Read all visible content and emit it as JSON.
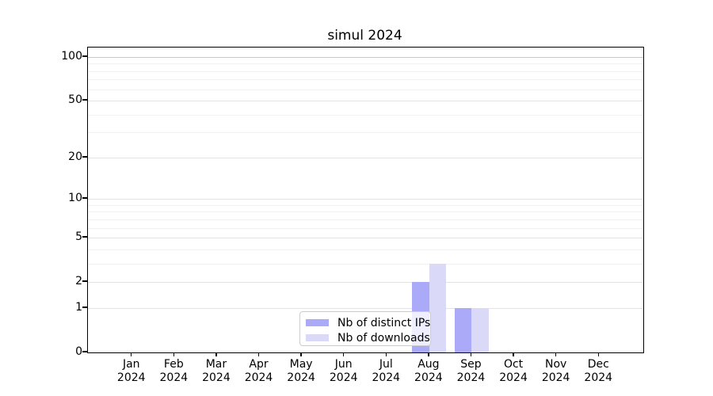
{
  "chart_data": {
    "type": "bar",
    "title": "simul 2024",
    "categories": [
      {
        "month": "Jan",
        "year": "2024"
      },
      {
        "month": "Feb",
        "year": "2024"
      },
      {
        "month": "Mar",
        "year": "2024"
      },
      {
        "month": "Apr",
        "year": "2024"
      },
      {
        "month": "May",
        "year": "2024"
      },
      {
        "month": "Jun",
        "year": "2024"
      },
      {
        "month": "Jul",
        "year": "2024"
      },
      {
        "month": "Aug",
        "year": "2024"
      },
      {
        "month": "Sep",
        "year": "2024"
      },
      {
        "month": "Oct",
        "year": "2024"
      },
      {
        "month": "Nov",
        "year": "2024"
      },
      {
        "month": "Dec",
        "year": "2024"
      }
    ],
    "series": [
      {
        "name": "Nb of distinct IPs",
        "color": "#aaaaf8",
        "values": [
          0,
          0,
          0,
          0,
          0,
          0,
          0,
          2,
          1,
          0,
          0,
          0
        ]
      },
      {
        "name": "Nb of downloads",
        "color": "#dadaf8",
        "values": [
          0,
          0,
          0,
          0,
          0,
          0,
          0,
          3,
          1,
          0,
          0,
          0
        ]
      }
    ],
    "xlabel": "",
    "ylabel": "",
    "yscale": "log1p",
    "ylim": [
      0,
      116
    ],
    "xlim": [
      -1.04,
      12.04
    ],
    "yticks": [
      0,
      1,
      2,
      5,
      10,
      20,
      50,
      100
    ],
    "yticks_minor": [
      3,
      4,
      6,
      7,
      8,
      9,
      30,
      40,
      60,
      70,
      80,
      90
    ],
    "bar_width_units": 0.4,
    "grid": "on",
    "legend_position": "lower center"
  }
}
